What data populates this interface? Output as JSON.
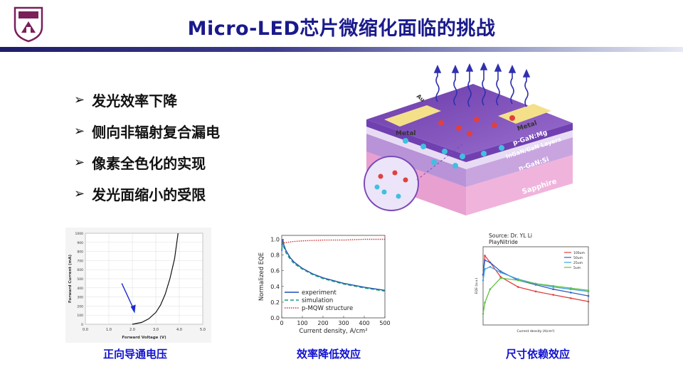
{
  "title": "Micro-LED芯片微缩化面临的挑战",
  "bullets": [
    {
      "label": "发光效率下降"
    },
    {
      "label": "侧向非辐射复合漏电"
    },
    {
      "label": "像素全色化的实现"
    },
    {
      "label": "发光面缩小的受限"
    }
  ],
  "device_labels": {
    "metal_left": "Metal",
    "metal_right": "Metal",
    "au": "Au",
    "pgan": "p-GaN:Mg",
    "ingan": "InGaN/GaN Layers",
    "ngan": "n-GaN:Si",
    "sapphire": "Sapphire"
  },
  "captions": {
    "iv": "正向导通电压",
    "eqe": "效率降低效应",
    "size": "尺寸依赖效应"
  },
  "chart_data": [
    {
      "type": "line",
      "xlabel": "Forward Voltage (V)",
      "ylabel": "Forward Current (mA)",
      "xticks": [
        "0.0",
        "1.0",
        "2.0",
        "3.0",
        "4.0",
        "5.0"
      ],
      "yticks": [
        "0",
        "100",
        "200",
        "300",
        "400",
        "500",
        "600",
        "700",
        "800",
        "900",
        "1000"
      ],
      "xlim": [
        0,
        5
      ],
      "ylim": [
        0,
        1000
      ],
      "series": [
        {
          "x": [
            2.0,
            2.4,
            2.7,
            3.0,
            3.2,
            3.4,
            3.6,
            3.8,
            3.95
          ],
          "y": [
            0,
            20,
            60,
            130,
            210,
            330,
            500,
            720,
            1000
          ]
        }
      ]
    },
    {
      "type": "line",
      "xlabel": "Current density, A/cm²",
      "ylabel": "Normalized EQE",
      "xticks": [
        "0",
        "100",
        "200",
        "300",
        "400",
        "500"
      ],
      "yticks": [
        "0.0",
        "0.2",
        "0.4",
        "0.6",
        "0.8",
        "1.0"
      ],
      "xlim": [
        0,
        500
      ],
      "ylim": [
        0,
        1.05
      ],
      "legend": "bottom-left",
      "series": [
        {
          "name": "experiment",
          "color": "#1f4fb0",
          "style": "solid",
          "x": [
            0,
            5,
            10,
            20,
            40,
            60,
            100,
            150,
            200,
            300,
            400,
            500
          ],
          "y": [
            0.85,
            1.0,
            0.93,
            0.86,
            0.77,
            0.71,
            0.63,
            0.56,
            0.51,
            0.44,
            0.39,
            0.35
          ]
        },
        {
          "name": "simulation",
          "color": "#1a9a80",
          "style": "dash",
          "x": [
            0,
            5,
            10,
            20,
            40,
            60,
            100,
            150,
            200,
            300,
            400,
            500
          ],
          "y": [
            0.88,
            0.97,
            0.9,
            0.83,
            0.75,
            0.69,
            0.62,
            0.55,
            0.5,
            0.43,
            0.38,
            0.34
          ]
        },
        {
          "name": "p-MQW structure",
          "color": "#d03030",
          "style": "dot",
          "x": [
            0,
            50,
            100,
            200,
            300,
            400,
            500
          ],
          "y": [
            0.95,
            0.97,
            0.98,
            0.99,
            0.99,
            1.0,
            1.0
          ]
        }
      ]
    },
    {
      "type": "line",
      "title": "Source: Dr. YL Li",
      "subtitle": "PlayNitride",
      "xlabel": "Current density (A/cm²)",
      "ylabel": "EQE (a.u.)",
      "legend": "top-right",
      "series": [
        {
          "name": "100um",
          "color": "#e04040",
          "x": [
            0,
            5,
            20,
            50,
            100,
            150,
            200,
            250,
            300
          ],
          "y": [
            0.45,
            0.62,
            0.56,
            0.43,
            0.34,
            0.3,
            0.27,
            0.24,
            0.21
          ]
        },
        {
          "name": "50um",
          "color": "#3060c0",
          "x": [
            0,
            5,
            20,
            50,
            100,
            150,
            200,
            250,
            300
          ],
          "y": [
            0.45,
            0.58,
            0.56,
            0.48,
            0.4,
            0.36,
            0.32,
            0.29,
            0.26
          ]
        },
        {
          "name": "25um",
          "color": "#40a0e0",
          "x": [
            0,
            5,
            20,
            50,
            100,
            150,
            200,
            250,
            300
          ],
          "y": [
            0.4,
            0.5,
            0.52,
            0.47,
            0.41,
            0.37,
            0.34,
            0.32,
            0.3
          ]
        },
        {
          "name": "5um",
          "color": "#60c040",
          "x": [
            0,
            5,
            20,
            50,
            100,
            150,
            200,
            250,
            300
          ],
          "y": [
            0.1,
            0.2,
            0.32,
            0.42,
            0.4,
            0.37,
            0.35,
            0.33,
            0.31
          ]
        }
      ]
    }
  ]
}
